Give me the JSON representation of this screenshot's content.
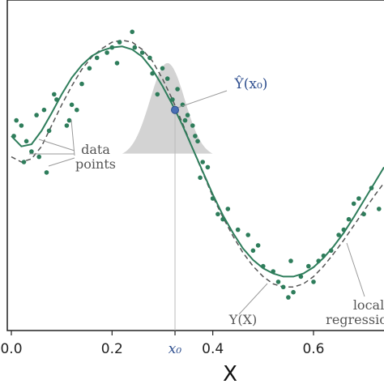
{
  "chart_data": {
    "type": "scatter",
    "xlabel": "X",
    "xlim": [
      0.0,
      0.74
    ],
    "ylim": [
      -1.45,
      1.35
    ],
    "x_ticks": [
      {
        "value": 0.0,
        "label": "0.0"
      },
      {
        "value": 0.2,
        "label": "0.2"
      },
      {
        "value": 0.4,
        "label": "0.4"
      },
      {
        "value": 0.6,
        "label": "0.6"
      }
    ],
    "x0": {
      "value": 0.325,
      "label": "x₀"
    },
    "point_estimate": {
      "x": 0.325,
      "y": 0.45,
      "label": "Ŷ(x₀)"
    },
    "kernel": {
      "center": 0.31,
      "width": 0.09,
      "base_y": 0.0,
      "peak_y": 0.9
    },
    "annotations": {
      "data_points": [
        "data",
        "points"
      ],
      "true_function": "Y(X)",
      "local_regression": [
        "local",
        "regressio"
      ]
    },
    "series": [
      {
        "role": "data",
        "x": [
          0.005,
          0.01,
          0.02,
          0.025,
          0.03,
          0.04,
          0.05,
          0.055,
          0.065,
          0.07,
          0.075,
          0.085,
          0.09,
          0.11,
          0.115,
          0.12,
          0.13,
          0.14,
          0.155,
          0.17,
          0.19,
          0.2,
          0.21,
          0.215,
          0.24,
          0.245,
          0.26,
          0.275,
          0.28,
          0.29,
          0.3,
          0.31,
          0.32,
          0.33,
          0.34,
          0.345,
          0.35,
          0.36,
          0.365,
          0.37,
          0.375,
          0.38,
          0.39,
          0.4,
          0.41,
          0.42,
          0.43,
          0.45,
          0.47,
          0.48,
          0.49,
          0.5,
          0.52,
          0.53,
          0.54,
          0.55,
          0.555,
          0.56,
          0.575,
          0.59,
          0.6,
          0.61,
          0.62,
          0.635,
          0.65,
          0.66,
          0.67,
          0.68,
          0.69,
          0.7,
          0.715,
          0.73
        ],
        "y": [
          0.2,
          0.35,
          0.3,
          -0.05,
          0.15,
          0.05,
          0.4,
          0.0,
          0.45,
          -0.15,
          0.25,
          0.6,
          0.55,
          0.3,
          0.35,
          0.5,
          0.45,
          0.7,
          0.85,
          0.95,
          1.0,
          1.05,
          0.9,
          1.1,
          1.2,
          1.05,
          1.0,
          0.95,
          0.8,
          0.6,
          0.85,
          0.75,
          0.55,
          0.65,
          0.5,
          0.35,
          0.4,
          0.3,
          0.2,
          0.15,
          -0.2,
          -0.05,
          -0.1,
          -0.4,
          -0.55,
          -0.6,
          -0.5,
          -0.7,
          -0.75,
          -0.9,
          -0.85,
          -1.05,
          -1.1,
          -1.2,
          -1.25,
          -1.35,
          -1.0,
          -1.3,
          -1.15,
          -1.05,
          -1.2,
          -1.0,
          -0.95,
          -0.9,
          -0.75,
          -0.7,
          -0.6,
          -0.45,
          -0.4,
          -0.55,
          -0.3,
          -0.5
        ]
      },
      {
        "role": "true_function",
        "x": [
          0.0,
          0.02,
          0.04,
          0.06,
          0.08,
          0.1,
          0.12,
          0.14,
          0.16,
          0.18,
          0.2,
          0.22,
          0.24,
          0.26,
          0.28,
          0.3,
          0.32,
          0.34,
          0.36,
          0.38,
          0.4,
          0.42,
          0.44,
          0.46,
          0.48,
          0.5,
          0.52,
          0.54,
          0.56,
          0.58,
          0.6,
          0.62,
          0.64,
          0.66,
          0.68,
          0.7,
          0.72,
          0.74
        ],
        "y": [
          0.0,
          -0.05,
          -0.02,
          0.1,
          0.3,
          0.5,
          0.68,
          0.84,
          0.96,
          1.04,
          1.1,
          1.12,
          1.1,
          1.03,
          0.92,
          0.75,
          0.55,
          0.32,
          0.08,
          -0.15,
          -0.38,
          -0.58,
          -0.76,
          -0.92,
          -1.05,
          -1.15,
          -1.22,
          -1.25,
          -1.25,
          -1.22,
          -1.15,
          -1.05,
          -0.93,
          -0.8,
          -0.66,
          -0.52,
          -0.38,
          -0.25
        ]
      },
      {
        "role": "local_regression",
        "x": [
          0.0,
          0.02,
          0.04,
          0.06,
          0.08,
          0.1,
          0.12,
          0.14,
          0.16,
          0.18,
          0.2,
          0.22,
          0.24,
          0.26,
          0.28,
          0.3,
          0.32,
          0.34,
          0.36,
          0.38,
          0.4,
          0.42,
          0.44,
          0.46,
          0.48,
          0.5,
          0.52,
          0.54,
          0.56,
          0.58,
          0.6,
          0.62,
          0.64,
          0.66,
          0.68,
          0.7,
          0.72,
          0.74
        ],
        "y": [
          0.2,
          0.1,
          0.12,
          0.25,
          0.42,
          0.6,
          0.76,
          0.88,
          0.97,
          1.02,
          1.05,
          1.06,
          1.03,
          0.96,
          0.84,
          0.68,
          0.5,
          0.3,
          0.08,
          -0.14,
          -0.36,
          -0.56,
          -0.73,
          -0.88,
          -0.99,
          -1.07,
          -1.12,
          -1.15,
          -1.15,
          -1.12,
          -1.06,
          -0.97,
          -0.86,
          -0.73,
          -0.58,
          -0.42,
          -0.26,
          -0.1
        ]
      }
    ],
    "colors": {
      "points": "#2e7d5b",
      "regression": "#2e7d5b",
      "true_function": "#555555",
      "kernel": "#d3d3d3",
      "estimate": "#4a6fb5"
    }
  }
}
